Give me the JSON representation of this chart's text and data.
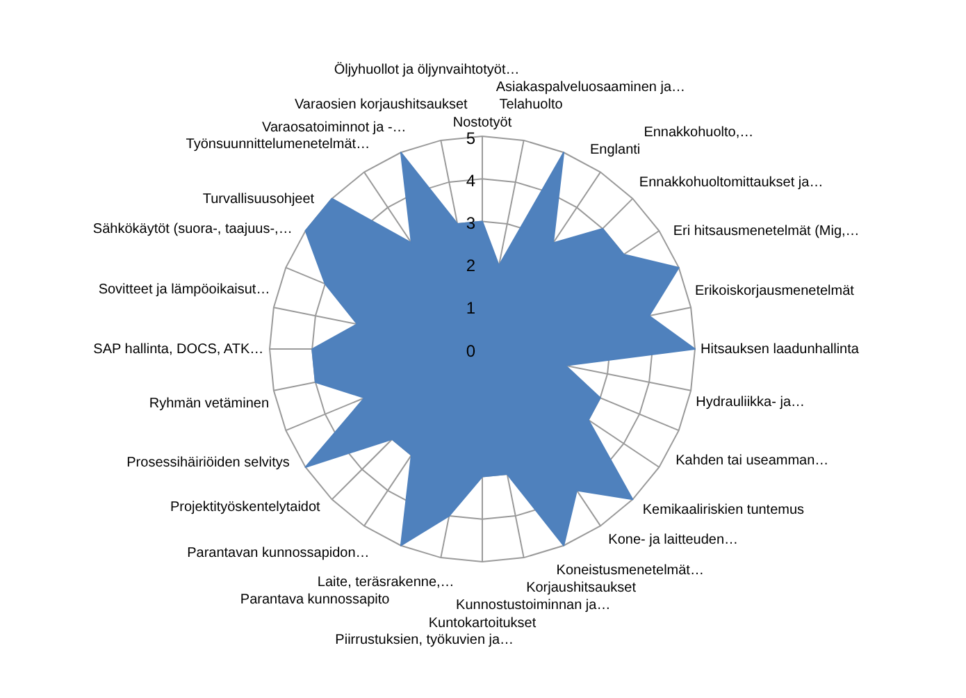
{
  "chart_data": {
    "type": "radar",
    "categories": [
      "Nostotyöt",
      "Telahuolto",
      "Asiakaspalveluosaaminen ja…",
      "Englanti",
      "Ennakkohuolto,…",
      "Ennakkohuoltomittaukset ja…",
      "Eri hitsausmenetelmät (Mig,…",
      "Erikoiskorjausmenetelmät",
      "Hitsauksen laadunhallinta",
      "Hydrauliikka- ja…",
      "Kahden tai useamman…",
      "Kemikaaliriskien tuntemus",
      "Kone- ja laitteuden…",
      "Koneistusmenetelmät…",
      "Korjaushitsaukset",
      "Kunnostustoiminnan ja…",
      "Kuntokartoitukset",
      "Piirrustuksien, työkuvien ja…",
      "Laite, teräsrakenne,…",
      "Parantava kunnossapito",
      "Parantavan kunnossapidon…",
      "Projektityöskentelytaidot",
      "Prosessihäiriöiden selvitys",
      "Ryhmän vetäminen",
      "SAP hallinta, DOCS, ATK…",
      "Sovitteet ja lämpöoikaisut…",
      "Sähkökäytöt (suora-, taajuus-,…",
      "Turvallisuusohjeet",
      "Työnsuunnittelumenetelmät…",
      "Varaosatoiminnot ja -…",
      "Varaosien korjaushitsaukset",
      "Öljyhuollot ja öljynvaihtotyöt…"
    ],
    "series": [
      {
        "type": "area",
        "color": "#4f81bd",
        "values": [
          3,
          2,
          5,
          3,
          4,
          4,
          5,
          4,
          5,
          2,
          3,
          3,
          5,
          4,
          5,
          3,
          3,
          4,
          5,
          3,
          3,
          5,
          3,
          4,
          4,
          3,
          4,
          5,
          5,
          3,
          5,
          3
        ]
      }
    ],
    "ylim": [
      0,
      5
    ],
    "yticks": [
      0,
      1,
      2,
      3,
      4,
      5
    ],
    "grid": true,
    "legend": false,
    "marker": "none"
  }
}
